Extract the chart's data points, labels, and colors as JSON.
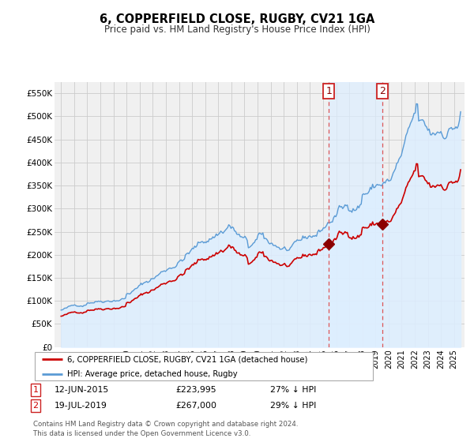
{
  "title": "6, COPPERFIELD CLOSE, RUGBY, CV21 1GA",
  "subtitle": "Price paid vs. HM Land Registry's House Price Index (HPI)",
  "yticks": [
    0,
    50000,
    100000,
    150000,
    200000,
    250000,
    300000,
    350000,
    400000,
    450000,
    500000,
    550000
  ],
  "ytick_labels": [
    "£0",
    "£50K",
    "£100K",
    "£150K",
    "£200K",
    "£250K",
    "£300K",
    "£350K",
    "£400K",
    "£450K",
    "£500K",
    "£550K"
  ],
  "ylim": [
    0,
    575000
  ],
  "hpi_color": "#5b9bd5",
  "hpi_fill_color": "#ddeeff",
  "hpi_fill_alpha": 0.6,
  "sale_color": "#cc0000",
  "vline_color": "#dd5555",
  "bg_color": "#f0f0f0",
  "grid_color": "#cccccc",
  "shade_between_color": "#ddeeff",
  "shade_between_alpha": 0.7,
  "legend_label_sale": "6, COPPERFIELD CLOSE, RUGBY, CV21 1GA (detached house)",
  "legend_label_hpi": "HPI: Average price, detached house, Rugby",
  "sale1_label": "1",
  "sale2_label": "2",
  "sale1_date_str": "12-JUN-2015",
  "sale1_price_str": "£223,995",
  "sale1_pct_str": "27% ↓ HPI",
  "sale2_date_str": "19-JUL-2019",
  "sale2_price_str": "£267,000",
  "sale2_pct_str": "29% ↓ HPI",
  "footer": "Contains HM Land Registry data © Crown copyright and database right 2024.\nThis data is licensed under the Open Government Licence v3.0.",
  "sale1_x": 2015.45,
  "sale1_y": 223995,
  "sale2_x": 2019.54,
  "sale2_y": 267000,
  "xlim_left": 1994.5,
  "xlim_right": 2025.8
}
